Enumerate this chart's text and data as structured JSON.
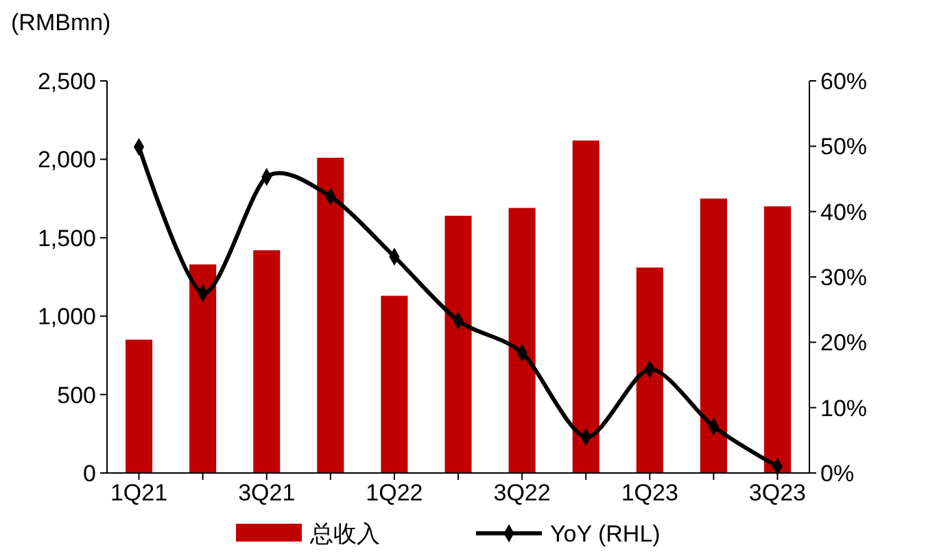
{
  "chart_data": {
    "type": "bar",
    "ylabel": "(RMBmn)",
    "categories": [
      "1Q21",
      null,
      "3Q21",
      null,
      "1Q22",
      null,
      "3Q22",
      null,
      "1Q23",
      null,
      "3Q23"
    ],
    "series": [
      {
        "name": "总收入",
        "color": "#c00000",
        "values": [
          850,
          1330,
          1420,
          2010,
          1130,
          1640,
          1690,
          2120,
          1310,
          1750,
          1700
        ]
      },
      {
        "name": "YoY (RHL)",
        "type": "line",
        "axis": "y2",
        "color": "#000000",
        "marker": "diamond",
        "values": [
          49.9,
          27.5,
          45.3,
          42.3,
          33.1,
          23.3,
          18.4,
          5.5,
          15.9,
          7.1,
          1.0
        ]
      }
    ],
    "ylim": [
      0,
      2500
    ],
    "yticks": [
      {
        "value": 0,
        "label": "0"
      },
      {
        "value": 500,
        "label": "500"
      },
      {
        "value": 1000,
        "label": "1,000"
      },
      {
        "value": 1500,
        "label": "1,500"
      },
      {
        "value": 2000,
        "label": "2,000"
      },
      {
        "value": 2500,
        "label": "2,500"
      }
    ],
    "y2lim": [
      0,
      60
    ],
    "y2ticks": [
      {
        "value": 0,
        "label": "0%"
      },
      {
        "value": 10,
        "label": "10%"
      },
      {
        "value": 20,
        "label": "20%"
      },
      {
        "value": 30,
        "label": "30%"
      },
      {
        "value": 40,
        "label": "40%"
      },
      {
        "value": 50,
        "label": "50%"
      },
      {
        "value": 60,
        "label": "60%"
      }
    ],
    "legend": "bottom",
    "grid": false
  }
}
